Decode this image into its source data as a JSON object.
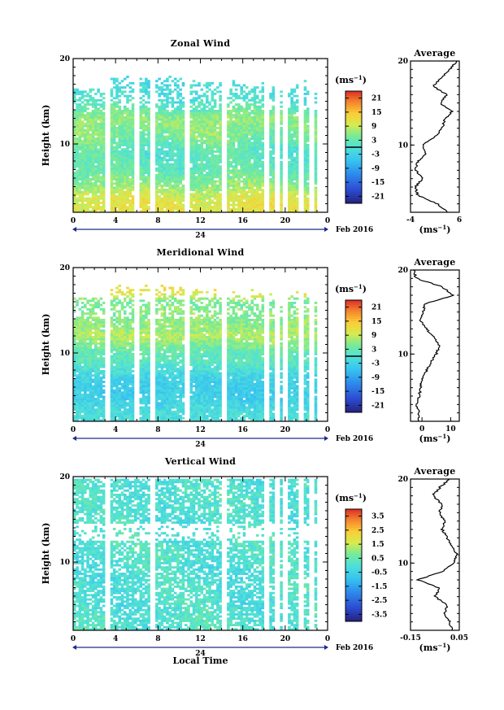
{
  "chart_data": [
    {
      "type": "heatmap",
      "title": "Zonal Wind",
      "ylabel": "Height (km)",
      "xlabel": "",
      "x_ticks": [
        "0",
        "4",
        "8",
        "12",
        "16",
        "20",
        "0"
      ],
      "y_ticks": [
        "20",
        "10"
      ],
      "xlim": [
        0,
        24
      ],
      "ylim": [
        2,
        20
      ],
      "date_label": "24",
      "date_suffix": "Feb 2016",
      "colorbar": {
        "unit_base": "(ms",
        "unit_exp": "−1",
        "unit_close": ")",
        "ticks": [
          "21",
          "15",
          "9",
          "3",
          "-3",
          "-9",
          "-15",
          "-21"
        ],
        "range": [
          -24,
          24
        ],
        "zero_line": 0
      },
      "average": {
        "title": "Average",
        "xlabel_base": "(ms",
        "xlabel_exp": "−1",
        "xlabel_close": ")",
        "x_ticks": [
          "-4",
          "6"
        ],
        "xlim": [
          -4,
          6
        ],
        "y_ticks": [
          "20",
          "10"
        ],
        "heights": [
          2,
          3,
          4,
          5,
          6,
          7,
          8,
          9,
          10,
          11,
          12,
          13,
          14,
          15,
          16,
          17,
          18,
          19,
          20
        ],
        "values": [
          3.5,
          1.5,
          -2.5,
          -3.0,
          -1.5,
          -3.0,
          -2.5,
          -1.0,
          -1.5,
          1.0,
          2.5,
          3.0,
          4.5,
          2.0,
          3.5,
          0.5,
          2.5,
          4.0,
          5.5
        ]
      },
      "missing_columns_hours": [
        3.3,
        5.9,
        7.5,
        10.7,
        14.2,
        18.2,
        19.2,
        20.0,
        21.6,
        22.4
      ],
      "field": {
        "w": [
          [
            10,
            4
          ],
          [
            5,
            7
          ],
          [
            3,
            10
          ],
          [
            1.5,
            14
          ],
          [
            -1,
            18
          ],
          [
            -1.2,
            23
          ]
        ],
        "u": [
          [
            -1,
            3
          ],
          [
            -1,
            5
          ],
          [
            -1.5,
            8
          ],
          [
            -2,
            11
          ],
          [
            1.5,
            14
          ],
          [
            0.5,
            17
          ],
          [
            1.5,
            20
          ]
        ],
        "v": [
          [
            2,
            3
          ],
          [
            -3,
            5
          ],
          [
            -4,
            7
          ],
          [
            -4,
            9
          ],
          [
            4,
            11
          ],
          [
            7,
            13
          ],
          [
            -1,
            15
          ],
          [
            -1,
            17
          ],
          [
            0,
            19
          ]
        ]
      }
    },
    {
      "type": "heatmap",
      "title": "Meridional Wind",
      "ylabel": "Height (km)",
      "xlabel": "",
      "x_ticks": [
        "0",
        "4",
        "8",
        "12",
        "16",
        "20",
        "0"
      ],
      "y_ticks": [
        "20",
        "10"
      ],
      "xlim": [
        0,
        24
      ],
      "ylim": [
        2,
        20
      ],
      "date_label": "24",
      "date_suffix": "Feb 2016",
      "colorbar": {
        "unit_base": "(ms",
        "unit_exp": "−1",
        "unit_close": ")",
        "ticks": [
          "21",
          "15",
          "9",
          "3",
          "-3",
          "-9",
          "-15",
          "-21"
        ],
        "range": [
          -24,
          24
        ],
        "zero_line": 0
      },
      "average": {
        "title": "Average",
        "xlabel_base": "(ms",
        "xlabel_exp": "−1",
        "xlabel_close": ")",
        "x_ticks": [
          "0",
          "10"
        ],
        "xlim": [
          -4,
          13
        ],
        "y_ticks": [
          "20",
          "10"
        ],
        "heights": [
          2,
          3,
          4,
          5,
          6,
          7,
          8,
          9,
          10,
          11,
          12,
          13,
          14,
          15,
          16,
          17,
          18,
          19,
          20
        ],
        "values": [
          -1.5,
          -1.0,
          -2.0,
          -1.0,
          -0.5,
          0.0,
          1.5,
          3.0,
          5.0,
          6.0,
          4.0,
          1.5,
          -0.5,
          0.5,
          1.0,
          11.0,
          7.0,
          -2.0,
          -3.0
        ]
      },
      "missing_columns_hours": [
        3.3,
        5.9,
        7.5,
        10.7,
        14.2,
        18.2,
        19.2,
        20.0,
        21.6,
        22.4
      ],
      "field": {
        "w": [
          [
            -2,
            4
          ],
          [
            -2,
            7
          ],
          [
            2,
            10
          ],
          [
            6,
            11
          ],
          [
            9,
            12
          ],
          [
            6,
            14
          ],
          [
            4,
            16
          ],
          [
            12,
            17
          ]
        ],
        "u": [
          [
            0,
            3
          ],
          [
            1,
            5
          ],
          [
            -0.5,
            8
          ],
          [
            1,
            11
          ],
          [
            -1,
            14
          ],
          [
            0.5,
            17
          ],
          [
            -0.5,
            20
          ]
        ],
        "v": [
          [
            2,
            3
          ],
          [
            -3,
            5
          ],
          [
            -2,
            7
          ],
          [
            2,
            9
          ],
          [
            -1,
            11
          ],
          [
            -2,
            13
          ],
          [
            1,
            15
          ],
          [
            -1,
            17
          ],
          [
            0,
            19
          ]
        ]
      }
    },
    {
      "type": "heatmap",
      "title": "Vertical Wind",
      "ylabel": "Height (km)",
      "xlabel": "Local Time",
      "x_ticks": [
        "0",
        "4",
        "8",
        "12",
        "16",
        "20",
        "0"
      ],
      "y_ticks": [
        "20",
        "10"
      ],
      "xlim": [
        0,
        24
      ],
      "ylim": [
        2,
        20
      ],
      "date_label": "24",
      "date_suffix": "Feb 2016",
      "colorbar": {
        "unit_base": "(ms",
        "unit_exp": "−1",
        "unit_close": ")",
        "ticks": [
          "3.5",
          "2.5",
          "1.5",
          "0.5",
          "-0.5",
          "-1.5",
          "-2.5",
          "-3.5"
        ],
        "range": [
          -4,
          4
        ]
      },
      "average": {
        "title": "Average",
        "xlabel_base": "(ms",
        "xlabel_exp": "−1",
        "xlabel_close": ")",
        "x_ticks": [
          "-0.15",
          "0.05"
        ],
        "xlim": [
          -0.15,
          0.05
        ],
        "y_ticks": [
          "20",
          "10"
        ],
        "heights": [
          2,
          3,
          4,
          5,
          6,
          7,
          8,
          9,
          10,
          11,
          12,
          13,
          14,
          15,
          16,
          17,
          18,
          19,
          20
        ],
        "values": [
          0.02,
          0.01,
          -0.01,
          0.0,
          -0.05,
          -0.03,
          -0.12,
          -0.02,
          0.03,
          0.04,
          0.02,
          0.0,
          -0.02,
          -0.01,
          -0.03,
          -0.02,
          -0.06,
          -0.03,
          0.01
        ]
      },
      "missing_columns_hours": [
        3.3,
        7.5,
        14.2,
        18.2,
        19.2,
        20.0,
        21.6,
        22.4
      ],
      "field": {
        "w": [
          [
            0,
            5
          ],
          [
            0,
            10
          ],
          [
            0,
            15
          ]
        ],
        "u": [
          [
            0.25,
            2
          ],
          [
            0.2,
            4
          ],
          [
            0.25,
            7
          ],
          [
            0.2,
            10
          ],
          [
            0.25,
            13
          ],
          [
            0.15,
            16
          ],
          [
            0.2,
            19
          ]
        ],
        "v": [
          [
            0.15,
            3
          ],
          [
            -0.1,
            5
          ],
          [
            0.1,
            7
          ],
          [
            -0.15,
            9
          ],
          [
            0.1,
            11
          ],
          [
            0.05,
            13
          ],
          [
            -0.05,
            15
          ],
          [
            0.05,
            17
          ],
          [
            0,
            19
          ]
        ]
      }
    }
  ]
}
